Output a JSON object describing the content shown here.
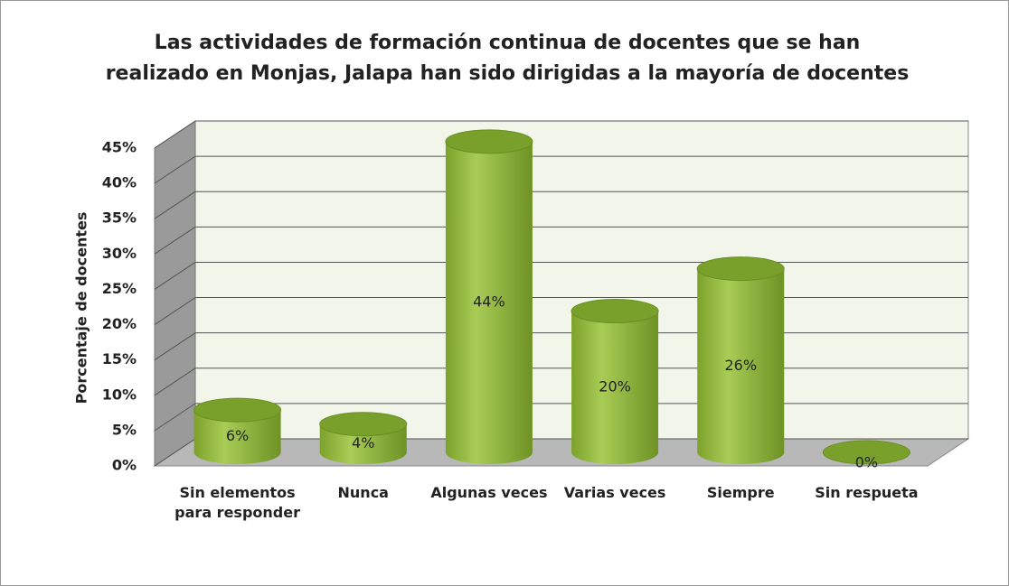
{
  "chart_data": {
    "type": "bar3d",
    "title": "Las actividades de formación continua de docentes que se han realizado en Monjas, Jalapa han sido dirigidas a la mayoría de docentes",
    "y_label": "Porcentaje de docentes",
    "categories": [
      "Sin elementos para responder",
      "Nunca",
      "Algunas veces",
      "Varias veces",
      "Siempre",
      "Sin respueta"
    ],
    "values": [
      6,
      4,
      44,
      20,
      26,
      0
    ],
    "value_labels": [
      "6%",
      "4%",
      "44%",
      "20%",
      "26%",
      "0%"
    ],
    "color": "#8db33a",
    "ylim": [
      0,
      45
    ],
    "yticks": [
      {
        "value": 0,
        "label": "0%"
      },
      {
        "value": 5,
        "label": "5%"
      },
      {
        "value": 10,
        "label": "10%"
      },
      {
        "value": 15,
        "label": "15%"
      },
      {
        "value": 20,
        "label": "20%"
      },
      {
        "value": 25,
        "label": "25%"
      },
      {
        "value": 30,
        "label": "30%"
      },
      {
        "value": 35,
        "label": "35%"
      },
      {
        "value": 40,
        "label": "40%"
      },
      {
        "value": 45,
        "label": "45%"
      }
    ],
    "grid": true
  }
}
